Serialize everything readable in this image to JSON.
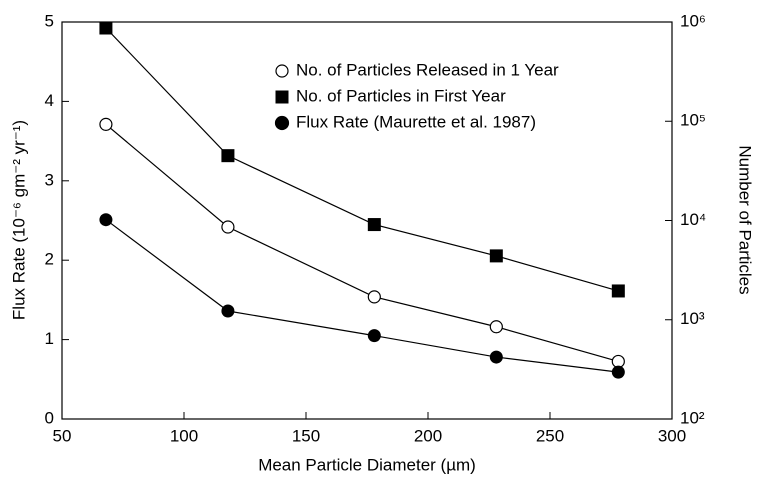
{
  "chart_data": {
    "type": "line",
    "xlabel": "Mean Particle Diameter (µm)",
    "ylabel": "Flux Rate (10⁻⁶ gm⁻² yr⁻¹)",
    "y2label": "Number of Particles",
    "x": [
      68,
      118,
      178,
      228,
      278
    ],
    "series": [
      {
        "name": "No. of Particles Released in 1 Year",
        "color": "#000000",
        "marker": "open-circle",
        "axis": "y2",
        "values": [
          93000,
          8600,
          1700,
          850,
          380
        ]
      },
      {
        "name": "No. of Particles in First Year",
        "color": "#000000",
        "marker": "square",
        "axis": "y2",
        "values": [
          870000,
          45000,
          9100,
          4400,
          1950
        ]
      },
      {
        "name": "Flux Rate (Maurette et al. 1987)",
        "color": "#000000",
        "marker": "circle",
        "values": [
          2.51,
          1.36,
          1.05,
          0.78,
          0.59
        ]
      }
    ],
    "xlim": [
      50,
      300
    ],
    "xticks": [
      50,
      100,
      150,
      200,
      250,
      300
    ],
    "ylim": [
      0,
      5
    ],
    "yticks": [
      0,
      1,
      2,
      3,
      4,
      5
    ],
    "y2lim": [
      100,
      1000000
    ],
    "y2log": true,
    "y2ticks": [
      {
        "value": 100,
        "label": "10²"
      },
      {
        "value": 1000,
        "label": "10³"
      },
      {
        "value": 10000,
        "label": "10⁴"
      },
      {
        "value": 100000,
        "label": "10⁵"
      },
      {
        "value": 1000000,
        "label": "10⁶"
      }
    ],
    "legend": "upper right"
  }
}
